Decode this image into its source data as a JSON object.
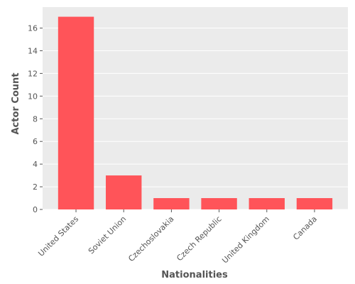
{
  "chart_data": {
    "type": "bar",
    "categories": [
      "United States",
      "Soviet Union",
      "Czechoslovakia",
      "Czech Republic",
      "United Kingdom",
      "Canada"
    ],
    "values": [
      17,
      3,
      1,
      1,
      1,
      1
    ],
    "xlabel": "Nationalities",
    "ylabel": "Actor Count",
    "ylim": [
      0,
      17.85
    ],
    "yticks": [
      0,
      2,
      4,
      6,
      8,
      10,
      12,
      14,
      16
    ],
    "bar_color": "#ff5459",
    "background_color": "#ebebeb",
    "grid": true,
    "grid_color": "#ffffff"
  }
}
